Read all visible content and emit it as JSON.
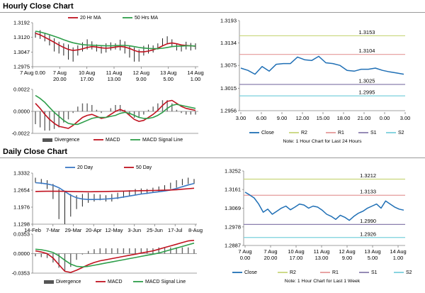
{
  "sections": {
    "hourly_title": "Hourly Close Chart",
    "daily_title": "Daily Close Chart"
  },
  "colors": {
    "close": "#1f6fb5",
    "ma_short": "#c0121f",
    "ma_long": "#2e9e4a",
    "macd": "#c0121f",
    "signal": "#2e9e4a",
    "divergence": "#666666",
    "ma20_daily": "#3b79c4",
    "ma50_daily": "#c0121f",
    "r2": "#c8d67c",
    "r1": "#e59a9a",
    "s1": "#8a7fae",
    "s2": "#7ad0dc",
    "axis": "#808080",
    "ohlc": "#222222"
  },
  "chart_data": [
    {
      "id": "hourly_ma",
      "type": "line",
      "legend": [
        "20 Hr MA",
        "50 Hrs MA"
      ],
      "yticks": [
        "1.3192",
        "1.3120",
        "1.3047",
        "1.2975"
      ],
      "ylim": [
        1.2975,
        1.3192
      ],
      "xlabels": [
        [
          "7 Aug 0.00",
          ""
        ],
        [
          "7 Aug",
          "20.00"
        ],
        [
          "10 Aug",
          "17.00"
        ],
        [
          "11 Aug",
          "13.00"
        ],
        [
          "12 Aug",
          "9.00"
        ],
        [
          "13 Aug",
          "5.00"
        ],
        [
          "14 Aug",
          "1.00"
        ]
      ],
      "ohlc": [
        [
          1.3148,
          1.3118
        ],
        [
          1.3155,
          1.3112
        ],
        [
          1.314,
          1.31
        ],
        [
          1.313,
          1.308
        ],
        [
          1.3115,
          1.305
        ],
        [
          1.3098,
          1.304
        ],
        [
          1.309,
          1.303
        ],
        [
          1.3085,
          1.301
        ],
        [
          1.307,
          1.3
        ],
        [
          1.308,
          1.303
        ],
        [
          1.3095,
          1.305
        ],
        [
          1.311,
          1.306
        ],
        [
          1.31,
          1.306
        ],
        [
          1.3085,
          1.305
        ],
        [
          1.3075,
          1.304
        ],
        [
          1.309,
          1.3045
        ],
        [
          1.3095,
          1.3055
        ],
        [
          1.309,
          1.306
        ],
        [
          1.3108,
          1.3055
        ],
        [
          1.31,
          1.304
        ],
        [
          1.308,
          1.302
        ],
        [
          1.307,
          1.3
        ],
        [
          1.306,
          1.3
        ],
        [
          1.3078,
          1.303
        ],
        [
          1.3085,
          1.304
        ],
        [
          1.308,
          1.3045
        ],
        [
          1.309,
          1.306
        ],
        [
          1.3115,
          1.308
        ],
        [
          1.3125,
          1.3085
        ],
        [
          1.311,
          1.3075
        ],
        [
          1.309,
          1.3055
        ],
        [
          1.3085,
          1.305
        ],
        [
          1.3098,
          1.306
        ],
        [
          1.3092,
          1.3055
        ],
        [
          1.309,
          1.306
        ]
      ],
      "ma_short": [
        1.314,
        1.3132,
        1.312,
        1.3108,
        1.3095,
        1.3082,
        1.307,
        1.306,
        1.3055,
        1.3058,
        1.3063,
        1.307,
        1.3074,
        1.3072,
        1.3068,
        1.3066,
        1.3068,
        1.3072,
        1.3075,
        1.3072,
        1.3065,
        1.3055,
        1.3048,
        1.3048,
        1.3052,
        1.3058,
        1.3066,
        1.3078,
        1.3088,
        1.3092,
        1.3088,
        1.3082,
        1.308,
        1.3078,
        1.3076
      ],
      "ma_long": [
        1.315,
        1.3146,
        1.314,
        1.3133,
        1.3125,
        1.3117,
        1.3108,
        1.31,
        1.3093,
        1.3088,
        1.3084,
        1.3082,
        1.3081,
        1.308,
        1.3079,
        1.3078,
        1.3078,
        1.3079,
        1.308,
        1.308,
        1.3078,
        1.3074,
        1.307,
        1.3067,
        1.3065,
        1.3064,
        1.3064,
        1.3066,
        1.307,
        1.3074,
        1.3076,
        1.3077,
        1.3078,
        1.3078,
        1.3077
      ]
    },
    {
      "id": "hourly_macd",
      "type": "line",
      "legend": [
        "Divergence",
        "MACD",
        "MACD Signal Line"
      ],
      "yticks": [
        "0.0022",
        "0.0000",
        "-0.0022"
      ],
      "ylim": [
        -0.0022,
        0.0022
      ],
      "macd": [
        0.0008,
        0.0003,
        -0.0003,
        -0.0008,
        -0.0012,
        -0.0015,
        -0.0016,
        -0.0017,
        -0.0014,
        -0.001,
        -0.0006,
        -0.0004,
        -0.0003,
        -0.0005,
        -0.0007,
        -0.0006,
        -0.0003,
        0.0,
        0.0002,
        0.0,
        -0.0004,
        -0.0008,
        -0.001,
        -0.0009,
        -0.0006,
        -0.0003,
        0.0001,
        0.0006,
        0.001,
        0.0011,
        0.0008,
        0.0005,
        0.0003,
        0.0002,
        0.0001
      ],
      "signal": [
        0.0016,
        0.0013,
        0.0009,
        0.0004,
        -0.0001,
        -0.0005,
        -0.0009,
        -0.0012,
        -0.0013,
        -0.0013,
        -0.0011,
        -0.0009,
        -0.0007,
        -0.0006,
        -0.0006,
        -0.0006,
        -0.0005,
        -0.0004,
        -0.0002,
        -0.0001,
        -0.0002,
        -0.0004,
        -0.0006,
        -0.0007,
        -0.0007,
        -0.0006,
        -0.0004,
        -0.0001,
        0.0003,
        0.0006,
        0.0007,
        0.0006,
        0.0005,
        0.0004,
        0.0003
      ]
    },
    {
      "id": "hourly_pivot",
      "type": "line",
      "legend": [
        "Close",
        "R2",
        "R1",
        "S1",
        "S2"
      ],
      "note": "Note: 1 Hour Chart for Last 24 Hours",
      "yticks": [
        "1.3193",
        "1.3134",
        "1.3075",
        "1.3015",
        "1.2956"
      ],
      "ylim": [
        1.2956,
        1.3193
      ],
      "xticks": [
        "3.00",
        "6.00",
        "9.00",
        "12.00",
        "15.00",
        "18.00",
        "21.00",
        "0.00",
        "3.00"
      ],
      "levels": {
        "r2": "1.3153",
        "r1": "1.3104",
        "s1": "1.3025",
        "s2": "1.2995"
      },
      "close": [
        1.3068,
        1.3062,
        1.3052,
        1.3072,
        1.306,
        1.3078,
        1.308,
        1.308,
        1.3097,
        1.309,
        1.3088,
        1.3099,
        1.3082,
        1.308,
        1.3075,
        1.3062,
        1.306,
        1.3065,
        1.3065,
        1.3068,
        1.3062,
        1.3058,
        1.3055,
        1.3052
      ]
    },
    {
      "id": "daily_ma",
      "type": "line",
      "legend": [
        "20 Day",
        "50 Day"
      ],
      "yticks": [
        "1.3332",
        "1.2654",
        "1.1976",
        "1.1298"
      ],
      "ylim": [
        1.1298,
        1.3332
      ],
      "xticks": [
        "14-Feb",
        "7-Mar",
        "29-Mar",
        "20-Apr",
        "12-May",
        "3-Jun",
        "25-Jun",
        "17-Jul",
        "8-Aug"
      ],
      "ohlc": [
        [
          1.315,
          1.295
        ],
        [
          1.31,
          1.29
        ],
        [
          1.305,
          1.27
        ],
        [
          1.29,
          1.23
        ],
        [
          1.27,
          1.15
        ],
        [
          1.26,
          1.13
        ],
        [
          1.25,
          1.16
        ],
        [
          1.245,
          1.19
        ],
        [
          1.25,
          1.2
        ],
        [
          1.255,
          1.215
        ],
        [
          1.25,
          1.22
        ],
        [
          1.248,
          1.225
        ],
        [
          1.245,
          1.22
        ],
        [
          1.25,
          1.22
        ],
        [
          1.255,
          1.23
        ],
        [
          1.26,
          1.235
        ],
        [
          1.265,
          1.24
        ],
        [
          1.27,
          1.245
        ],
        [
          1.272,
          1.25
        ],
        [
          1.27,
          1.25
        ],
        [
          1.275,
          1.255
        ],
        [
          1.28,
          1.26
        ],
        [
          1.285,
          1.265
        ],
        [
          1.295,
          1.27
        ],
        [
          1.305,
          1.275
        ],
        [
          1.31,
          1.285
        ],
        [
          1.315,
          1.29
        ],
        [
          1.31,
          1.29
        ]
      ],
      "ma20": [
        1.295,
        1.293,
        1.29,
        1.285,
        1.275,
        1.26,
        1.245,
        1.235,
        1.23,
        1.228,
        1.228,
        1.229,
        1.23,
        1.232,
        1.234,
        1.238,
        1.242,
        1.246,
        1.25,
        1.253,
        1.256,
        1.259,
        1.262,
        1.266,
        1.272,
        1.279,
        1.286,
        1.292
      ],
      "ma50": [
        1.26,
        1.2605,
        1.261,
        1.2612,
        1.261,
        1.2605,
        1.26,
        1.2595,
        1.2592,
        1.259,
        1.2592,
        1.2595,
        1.26,
        1.2605,
        1.261,
        1.2615,
        1.262,
        1.2625,
        1.263,
        1.2635,
        1.264,
        1.2645,
        1.265,
        1.266,
        1.267,
        1.269,
        1.271,
        1.273
      ]
    },
    {
      "id": "daily_macd",
      "type": "line",
      "legend": [
        "Divergence",
        "MACD",
        "MACD Signal Line"
      ],
      "yticks": [
        "0.0353",
        "0.0000",
        "-0.0353"
      ],
      "ylim": [
        -0.0353,
        0.0353
      ],
      "macd": [
        0.005,
        0.003,
        0.0,
        -0.008,
        -0.02,
        -0.032,
        -0.034,
        -0.03,
        -0.025,
        -0.02,
        -0.016,
        -0.013,
        -0.011,
        -0.009,
        -0.007,
        -0.005,
        -0.003,
        -0.001,
        0.001,
        0.003,
        0.005,
        0.008,
        0.011,
        0.014,
        0.017,
        0.02,
        0.023,
        0.024
      ],
      "signal": [
        0.008,
        0.007,
        0.005,
        0.002,
        -0.004,
        -0.012,
        -0.019,
        -0.023,
        -0.024,
        -0.023,
        -0.021,
        -0.019,
        -0.017,
        -0.015,
        -0.013,
        -0.011,
        -0.009,
        -0.007,
        -0.005,
        -0.003,
        -0.001,
        0.001,
        0.004,
        0.007,
        0.01,
        0.013,
        0.016,
        0.019
      ]
    },
    {
      "id": "daily_pivot",
      "type": "line",
      "legend": [
        "Close",
        "R2",
        "R1",
        "S1",
        "S2"
      ],
      "note": "Note: 1 Hour Chart for Last 1 Week",
      "yticks": [
        "1.3252",
        "1.3161",
        "1.3069",
        "1.2978",
        "1.2887"
      ],
      "ylim": [
        1.2887,
        1.3252
      ],
      "xlabels": [
        [
          "7 Aug",
          "0.00"
        ],
        [
          "7 Aug",
          "20.00"
        ],
        [
          "10 Aug",
          "17.00"
        ],
        [
          "11 Aug",
          "13.00"
        ],
        [
          "12 Aug",
          "9.00"
        ],
        [
          "13 Aug",
          "5.00"
        ],
        [
          "14 Aug",
          "1.00"
        ]
      ],
      "levels": {
        "r2": "1.3212",
        "r1": "1.3133",
        "s1": "1.2990",
        "s2": "1.2926"
      },
      "close": [
        1.3148,
        1.3135,
        1.312,
        1.309,
        1.305,
        1.3065,
        1.304,
        1.3055,
        1.307,
        1.308,
        1.3062,
        1.3075,
        1.309,
        1.3085,
        1.307,
        1.308,
        1.3075,
        1.306,
        1.304,
        1.303,
        1.3015,
        1.3035,
        1.3025,
        1.301,
        1.303,
        1.3045,
        1.3055,
        1.307,
        1.308,
        1.309,
        1.307,
        1.3105,
        1.309,
        1.3075,
        1.3065,
        1.306
      ]
    }
  ]
}
